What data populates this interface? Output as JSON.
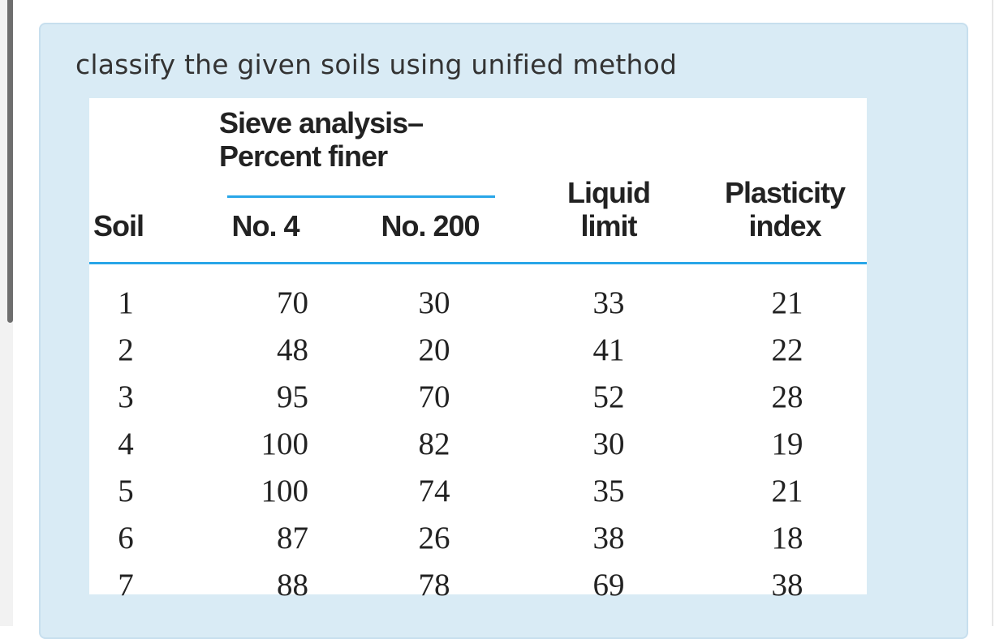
{
  "question": "classify the given soils using unified method",
  "table": {
    "group_header": [
      "Sieve analysis–",
      "Percent finer"
    ],
    "headers": {
      "soil": "Soil",
      "no4": "No. 4",
      "no200": "No. 200",
      "liquid_limit": [
        "Liquid",
        "limit"
      ],
      "plasticity_index": [
        "Plasticity",
        "index"
      ]
    },
    "columns": {
      "soil": [
        "1",
        "2",
        "3",
        "4",
        "5",
        "6",
        "7"
      ],
      "no4": [
        "70",
        "48",
        "95",
        "100",
        "100",
        "87",
        "88"
      ],
      "no200": [
        "30",
        "20",
        "70",
        "82",
        "74",
        "26",
        "78"
      ],
      "liquid_limit": [
        "33",
        "41",
        "52",
        "30",
        "35",
        "38",
        "69"
      ],
      "plasticity_index": [
        "21",
        "22",
        "28",
        "19",
        "21",
        "18",
        "38"
      ]
    }
  }
}
